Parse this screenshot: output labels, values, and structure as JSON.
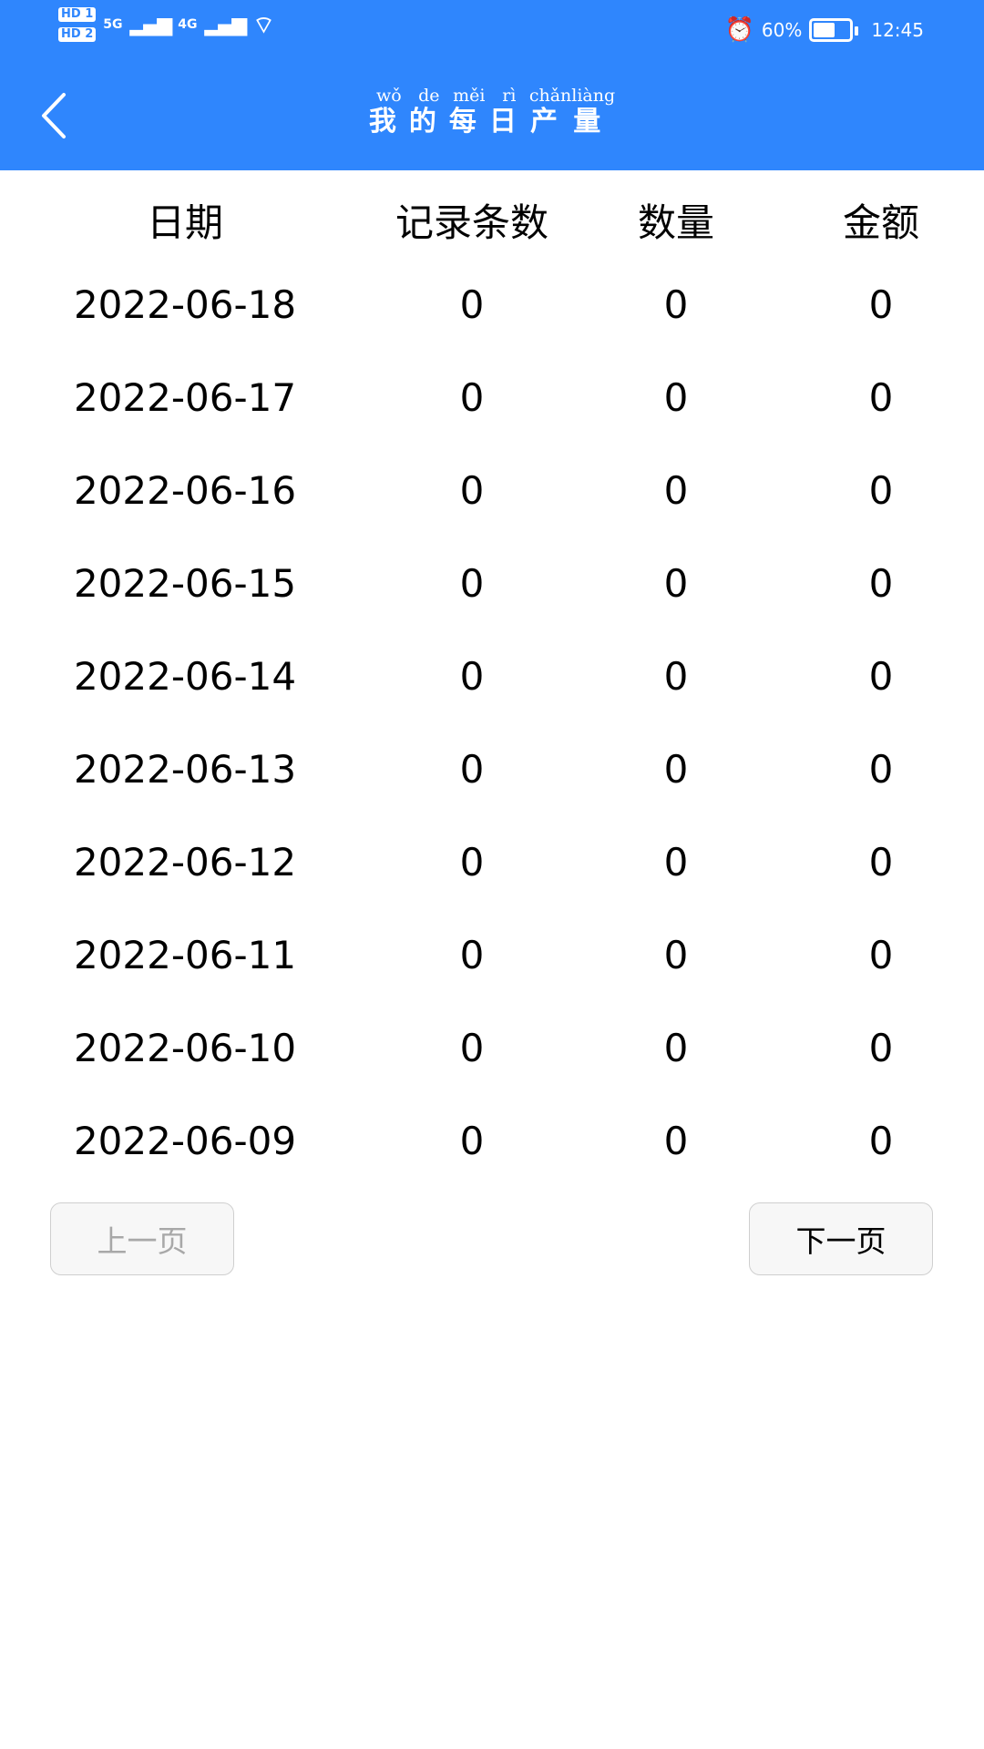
{
  "status_bar": {
    "sim1": "HD 1",
    "sim2": "HD 2",
    "net1": "5G",
    "net2": "4G",
    "battery_text": "60%",
    "battery_level": 0.6,
    "time": "12:45",
    "icons": [
      "signal-icon",
      "wifi-icon",
      "alarm-icon",
      "battery-icon"
    ]
  },
  "header": {
    "back_icon": "chevron-left-icon",
    "title_chars": [
      "我",
      "的",
      "每",
      "日",
      "产",
      "量"
    ],
    "title_pinyin": [
      "wǒ",
      "de",
      "měi",
      "rì",
      "chǎn",
      "liàng"
    ]
  },
  "table": {
    "columns": [
      "日期",
      "记录条数",
      "数量",
      "金额"
    ],
    "rows": [
      [
        "2022-06-18",
        "0",
        "0",
        "0"
      ],
      [
        "2022-06-17",
        "0",
        "0",
        "0"
      ],
      [
        "2022-06-16",
        "0",
        "0",
        "0"
      ],
      [
        "2022-06-15",
        "0",
        "0",
        "0"
      ],
      [
        "2022-06-14",
        "0",
        "0",
        "0"
      ],
      [
        "2022-06-13",
        "0",
        "0",
        "0"
      ],
      [
        "2022-06-12",
        "0",
        "0",
        "0"
      ],
      [
        "2022-06-11",
        "0",
        "0",
        "0"
      ],
      [
        "2022-06-10",
        "0",
        "0",
        "0"
      ],
      [
        "2022-06-09",
        "0",
        "0",
        "0"
      ]
    ]
  },
  "pagination": {
    "prev_label": "上一页",
    "prev_enabled": false,
    "next_label": "下一页",
    "next_enabled": true
  }
}
